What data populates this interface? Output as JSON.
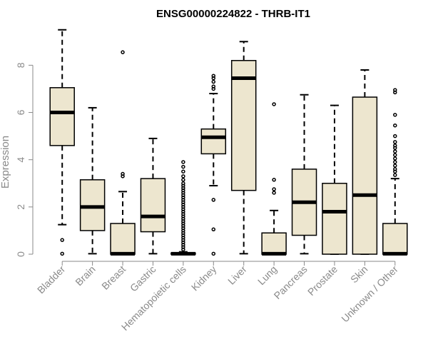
{
  "chart_data": {
    "type": "boxplot",
    "title": "ENSG00000224822 - THRB-IT1",
    "xlabel": "",
    "ylabel": "Expression",
    "ylim": [
      0,
      9.6
    ],
    "yticks": [
      0,
      2,
      4,
      6,
      8
    ],
    "box_fill": "#ede6cf",
    "line_color": "#000000",
    "axis_text_color": "#8a8a8a",
    "categories": [
      "Bladder",
      "Brain",
      "Breast",
      "Gastric",
      "Hematopoietic cells",
      "Kidney",
      "Liver",
      "Lung",
      "Pancreas",
      "Prostate",
      "Skin",
      "Unknown / Other"
    ],
    "boxes": [
      {
        "low": 1.25,
        "q1": 4.6,
        "median": 6.0,
        "q3": 7.05,
        "high": 9.5,
        "outliers": [
          0.6,
          0.02
        ]
      },
      {
        "low": 0.02,
        "q1": 1.0,
        "median": 2.0,
        "q3": 3.15,
        "high": 6.2,
        "outliers": []
      },
      {
        "low": 0.0,
        "q1": 0.0,
        "median": 0.02,
        "q3": 1.3,
        "high": 2.65,
        "outliers": [
          3.3,
          3.4,
          8.55
        ]
      },
      {
        "low": 0.02,
        "q1": 0.95,
        "median": 1.6,
        "q3": 3.2,
        "high": 4.9,
        "outliers": []
      },
      {
        "low": 0.0,
        "q1": 0.0,
        "median": 0.02,
        "q3": 0.05,
        "high": 0.1,
        "outliers": [
          0.2,
          0.3,
          0.4,
          0.5,
          0.6,
          0.7,
          0.8,
          0.9,
          1.0,
          1.1,
          1.2,
          1.3,
          1.4,
          1.5,
          1.6,
          1.7,
          1.8,
          1.9,
          2.0,
          2.1,
          2.2,
          2.3,
          2.4,
          2.5,
          2.6,
          2.7,
          2.8,
          2.9,
          3.0,
          3.15,
          3.3,
          3.5,
          3.7,
          3.9
        ]
      },
      {
        "low": 2.9,
        "q1": 4.25,
        "median": 4.95,
        "q3": 5.3,
        "high": 6.8,
        "outliers": [
          7.0,
          7.1,
          7.3,
          7.45,
          7.55,
          2.3,
          1.05,
          0.02
        ]
      },
      {
        "low": 0.02,
        "q1": 2.7,
        "median": 7.45,
        "q3": 8.2,
        "high": 9.0,
        "outliers": []
      },
      {
        "low": 0.0,
        "q1": 0.0,
        "median": 0.02,
        "q3": 0.9,
        "high": 1.85,
        "outliers": [
          2.6,
          2.75,
          3.15,
          6.35
        ]
      },
      {
        "low": 0.02,
        "q1": 0.8,
        "median": 2.2,
        "q3": 3.6,
        "high": 6.75,
        "outliers": []
      },
      {
        "low": 0.0,
        "q1": 0.0,
        "median": 1.8,
        "q3": 3.0,
        "high": 6.3,
        "outliers": []
      },
      {
        "low": 0.0,
        "q1": 0.0,
        "median": 2.5,
        "q3": 6.65,
        "high": 7.8,
        "outliers": []
      },
      {
        "low": 0.0,
        "q1": 0.0,
        "median": 0.02,
        "q3": 1.3,
        "high": 3.2,
        "outliers": [
          3.35,
          3.5,
          3.6,
          3.75,
          3.9,
          4.05,
          4.2,
          4.35,
          4.5,
          4.6,
          4.75,
          5.0,
          5.45,
          5.9,
          6.85,
          6.95
        ]
      }
    ]
  }
}
